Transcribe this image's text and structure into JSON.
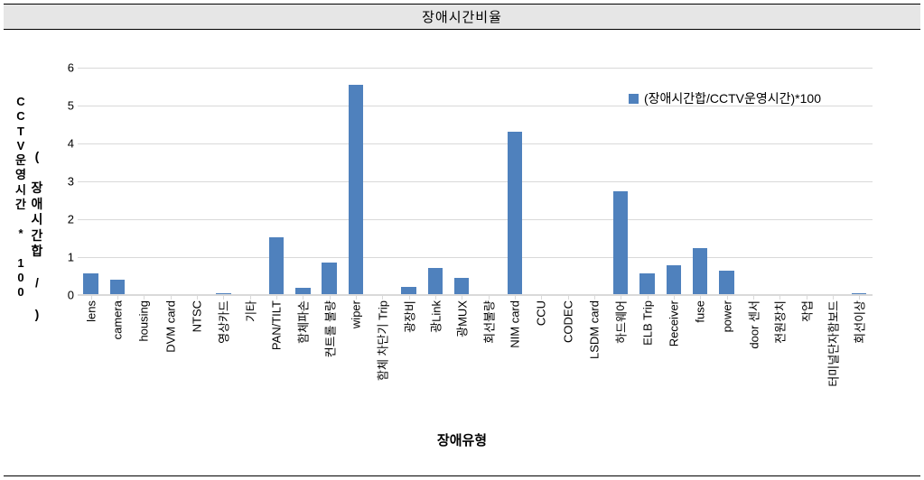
{
  "header_title": "장애시간비율",
  "chart": {
    "type": "bar",
    "ylim": [
      0,
      6
    ],
    "ytick_step": 1,
    "yticks": [
      0,
      1,
      2,
      3,
      4,
      5,
      6
    ],
    "bar_color": "#4f81bd",
    "grid_color": "#d9d9d9",
    "background_color": "#ffffff",
    "label_fontsize": 13,
    "bar_width_pct": 56,
    "legend": {
      "label": "(장애시간합/CCTV운영시간)*100",
      "color": "#4f81bd"
    },
    "y_axis_label_outer": "CCTV운영시간 * 100",
    "y_axis_label_inner": "( 장애시간합 / )",
    "x_axis_title": "장애유형",
    "categories": [
      "lens",
      "camera",
      "housing",
      "DVM card",
      "NTSC",
      "영상카드",
      "기타",
      "PAN/TILT",
      "함체파손",
      "컨트롤 불량",
      "wiper",
      "함체 차단기 Trip",
      "광장비",
      "광Link",
      "광MUX",
      "회선불량",
      "NIM card",
      "CCU",
      "CODEC",
      "LSDM card",
      "하드웨어",
      "ELB Trip",
      "Receiver",
      "fuse",
      "power",
      "door 센서",
      "전원장치",
      "작업",
      "터미널단자함보드",
      "회선이상"
    ],
    "values": [
      0.58,
      0.4,
      0.0,
      0.0,
      0.0,
      0.05,
      0.0,
      1.52,
      0.2,
      0.85,
      5.55,
      0.02,
      0.22,
      0.72,
      0.45,
      0.0,
      4.3,
      0.0,
      0.0,
      0.0,
      2.75,
      0.58,
      0.78,
      1.25,
      0.65,
      0.0,
      0.0,
      0.0,
      0.03,
      0.05
    ]
  }
}
